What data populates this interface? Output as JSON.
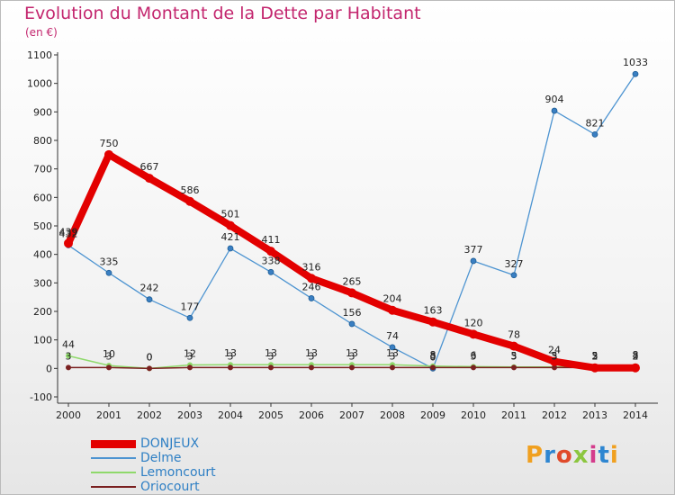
{
  "title": "Evolution du Montant de la Dette par Habitant",
  "subtitle": "(en €)",
  "logo": "Proxiti",
  "chart_data": {
    "type": "line",
    "title": "Evolution du Montant de la Dette par Habitant",
    "subtitle": "(en €)",
    "x": [
      "2000",
      "2001",
      "2002",
      "2003",
      "2004",
      "2005",
      "2006",
      "2007",
      "2008",
      "2009",
      "2010",
      "2011",
      "2012",
      "2013",
      "2014"
    ],
    "ylim": [
      -100,
      1100
    ],
    "yticks": [
      "-100",
      "0",
      "100",
      "200",
      "300",
      "400",
      "500",
      "600",
      "700",
      "800",
      "900",
      "1000",
      "1100"
    ],
    "grid": false,
    "legend_position": "bottom-left",
    "series": [
      {
        "name": "DONJEUX",
        "color": "#e30000",
        "values": [
          439,
          750,
          667,
          586,
          501,
          411,
          316,
          265,
          204,
          163,
          120,
          78,
          24,
          2,
          2
        ],
        "labels": [
          "439",
          "750",
          "667",
          "586",
          "501",
          "411",
          "316",
          "265",
          "204",
          "163",
          "120",
          "78",
          "24",
          "2",
          "2"
        ]
      },
      {
        "name": "Delme",
        "color": "#4d94d1",
        "values": [
          432,
          335,
          242,
          177,
          421,
          338,
          246,
          156,
          74,
          0,
          377,
          327,
          904,
          821,
          1033
        ],
        "labels": [
          "432",
          "335",
          "242",
          "177",
          "421",
          "338",
          "246",
          "156",
          "74",
          "0",
          "377",
          "327",
          "904",
          "821",
          "1033"
        ]
      },
      {
        "name": "Lemoncourt",
        "color": "#8fd96b",
        "values": [
          44,
          10,
          0,
          12,
          13,
          13,
          13,
          13,
          13,
          8,
          6,
          5,
          5,
          5,
          8
        ],
        "labels": [
          "44",
          "10",
          "0",
          "12",
          "13",
          "13",
          "13",
          "13",
          "13",
          "8",
          "6",
          "5",
          "5",
          "5",
          "8"
        ]
      },
      {
        "name": "Oriocourt",
        "color": "#7a2020",
        "values": [
          3,
          3,
          0,
          3,
          3,
          3,
          3,
          3,
          3,
          3,
          3,
          3,
          3,
          3,
          3
        ],
        "labels": [
          "3",
          "3",
          "0",
          "3",
          "3",
          "3",
          "3",
          "3",
          "3",
          "3",
          "3",
          "3",
          "3",
          "3",
          "3"
        ]
      }
    ]
  },
  "colors": {
    "title": "#c3266e",
    "axis": "#333333",
    "legend_text": "#2e7fc4"
  }
}
